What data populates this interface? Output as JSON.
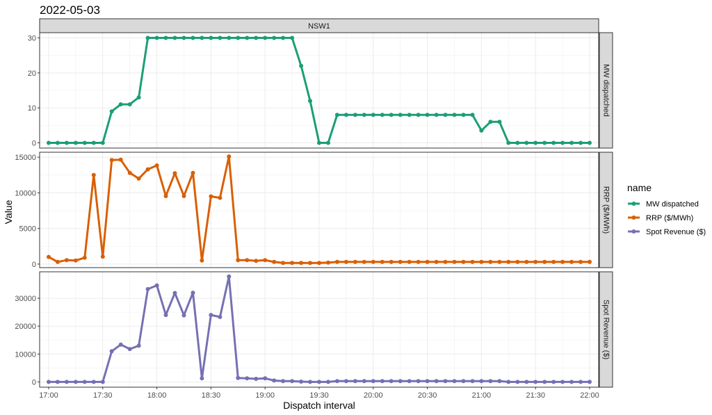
{
  "chart_data": {
    "type": "line",
    "title": "2022-05-03",
    "xlabel": "Dispatch interval",
    "ylabel": "Value",
    "facet_column": "NSW1",
    "x_ticks": [
      "17:00",
      "17:30",
      "18:00",
      "18:30",
      "19:00",
      "19:30",
      "20:00",
      "20:30",
      "21:00",
      "21:30",
      "22:00"
    ],
    "x_start": "17:00",
    "x_step_minutes": 5,
    "xlim": [
      "16:55",
      "22:05"
    ],
    "legend": {
      "title": "name",
      "position": "right"
    },
    "grid": true,
    "series": [
      {
        "name": "MW dispatched",
        "color": "#1b9e77",
        "ylim": [
          -1.5,
          31.5
        ],
        "y_ticks": [
          0,
          10,
          20,
          30
        ],
        "values": [
          0,
          0,
          0,
          0,
          0,
          0,
          0,
          9,
          11,
          11,
          13,
          30,
          30,
          30,
          30,
          30,
          30,
          30,
          30,
          30,
          30,
          30,
          30,
          30,
          30,
          30,
          30,
          30,
          22,
          12,
          0,
          0,
          8,
          8,
          8,
          8,
          8,
          8,
          8,
          8,
          8,
          8,
          8,
          8,
          8,
          8,
          8,
          8,
          3.5,
          6,
          6,
          0,
          0,
          0,
          0,
          0,
          0,
          0,
          0,
          0,
          0
        ]
      },
      {
        "name": "RRP ($/MWh)",
        "color": "#d95f02",
        "ylim": [
          -500,
          15700
        ],
        "y_ticks": [
          0,
          5000,
          10000,
          15000
        ],
        "values": [
          1000,
          300,
          550,
          500,
          900,
          12500,
          1050,
          14600,
          14650,
          12800,
          12000,
          13300,
          13850,
          9550,
          12750,
          9550,
          12800,
          500,
          9500,
          9300,
          15100,
          550,
          550,
          450,
          550,
          300,
          150,
          150,
          150,
          150,
          150,
          200,
          300,
          300,
          300,
          300,
          300,
          300,
          300,
          300,
          300,
          300,
          300,
          300,
          300,
          300,
          300,
          300,
          300,
          300,
          300,
          300,
          300,
          300,
          300,
          300,
          300,
          300,
          300,
          300,
          300
        ]
      },
      {
        "name": "Spot Revenue ($)",
        "color": "#7570b3",
        "ylim": [
          -1900,
          39500
        ],
        "y_ticks": [
          0,
          10000,
          20000,
          30000
        ],
        "values": [
          0,
          0,
          0,
          0,
          0,
          0,
          0,
          11000,
          13400,
          11800,
          13000,
          33300,
          34600,
          24000,
          31900,
          23900,
          32000,
          1300,
          24000,
          23300,
          37800,
          1400,
          1300,
          1100,
          1300,
          500,
          300,
          300,
          100,
          0,
          0,
          0,
          300,
          300,
          300,
          300,
          300,
          300,
          300,
          300,
          300,
          300,
          300,
          300,
          300,
          300,
          300,
          300,
          300,
          300,
          300,
          0,
          0,
          0,
          0,
          0,
          0,
          0,
          0,
          0,
          0
        ]
      }
    ]
  }
}
